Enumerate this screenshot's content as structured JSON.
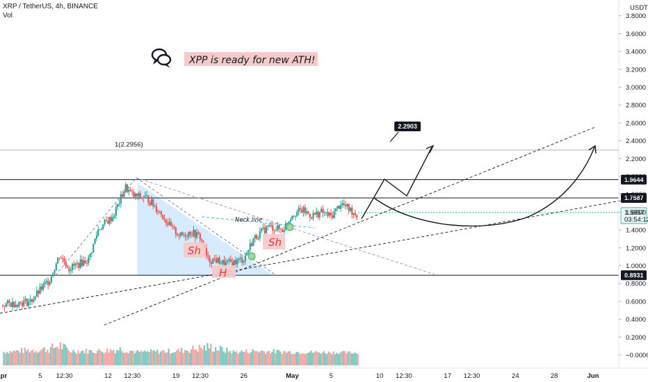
{
  "header": {
    "symbol_line": "XRP / TetherUS, 4h, BINANCE",
    "indicator_line": "Vol",
    "currency_label": "USDT"
  },
  "chart_data": {
    "type": "candlestick",
    "title": "XRP / TetherUS, 4h, BINANCE",
    "currency": "USDT",
    "y_ticks": [
      -0.0,
      0.2,
      0.4,
      0.6,
      0.8,
      1.0,
      1.2,
      1.4,
      1.6,
      1.8,
      2.0,
      2.2,
      2.4,
      2.6,
      2.8,
      3.0,
      3.2,
      3.4,
      3.6,
      3.8
    ],
    "y_tick_labels": [
      "−0.0000",
      "0.2000",
      "0.4000",
      "0.6000",
      "0.8000",
      "1.0000",
      "1.2000",
      "1.4000",
      "1.6000",
      "1.8000",
      "2.0000",
      "2.2000",
      "2.4000",
      "2.6000",
      "2.8000",
      "3.0000",
      "3.2000",
      "3.4000",
      "3.6000",
      "3.8000"
    ],
    "ylim": [
      -0.1,
      3.95
    ],
    "x_ticks": [
      {
        "label": "Apr",
        "day": 0
      },
      {
        "label": "5",
        "day": 4
      },
      {
        "label": "12:30",
        "day": 6.5
      },
      {
        "label": "12",
        "day": 11
      },
      {
        "label": "12:30",
        "day": 13.5
      },
      {
        "label": "19",
        "day": 18
      },
      {
        "label": "12:30",
        "day": 20.5
      },
      {
        "label": "26",
        "day": 25
      },
      {
        "label": "May",
        "day": 30
      },
      {
        "label": "5",
        "day": 34
      },
      {
        "label": "10",
        "day": 39
      },
      {
        "label": "12:30",
        "day": 41.5
      },
      {
        "label": "17",
        "day": 46
      },
      {
        "label": "12:30",
        "day": 48.5
      },
      {
        "label": "24",
        "day": 53
      },
      {
        "label": "28",
        "day": 57
      },
      {
        "label": "Jun",
        "day": 61
      }
    ],
    "price_key_points": [
      {
        "day": 0,
        "price": 0.56
      },
      {
        "day": 3,
        "price": 0.6
      },
      {
        "day": 5,
        "price": 0.85
      },
      {
        "day": 6,
        "price": 1.12
      },
      {
        "day": 7,
        "price": 0.97
      },
      {
        "day": 9,
        "price": 1.07
      },
      {
        "day": 10,
        "price": 1.41
      },
      {
        "day": 11.5,
        "price": 1.55
      },
      {
        "day": 12.8,
        "price": 1.88
      },
      {
        "day": 13.6,
        "price": 1.78
      },
      {
        "day": 15,
        "price": 1.76
      },
      {
        "day": 16.5,
        "price": 1.58
      },
      {
        "day": 17.5,
        "price": 1.42
      },
      {
        "day": 18.5,
        "price": 1.33
      },
      {
        "day": 19.5,
        "price": 1.38
      },
      {
        "day": 20.5,
        "price": 1.32
      },
      {
        "day": 21.3,
        "price": 1.06
      },
      {
        "day": 22,
        "price": 1.07
      },
      {
        "day": 23,
        "price": 1.02
      },
      {
        "day": 24,
        "price": 1.04
      },
      {
        "day": 25,
        "price": 1.08
      },
      {
        "day": 26,
        "price": 1.3
      },
      {
        "day": 27.5,
        "price": 1.44
      },
      {
        "day": 29,
        "price": 1.4
      },
      {
        "day": 30,
        "price": 1.58
      },
      {
        "day": 31,
        "price": 1.62
      },
      {
        "day": 32,
        "price": 1.56
      },
      {
        "day": 33,
        "price": 1.6
      },
      {
        "day": 34,
        "price": 1.55
      },
      {
        "day": 35,
        "price": 1.7
      },
      {
        "day": 36,
        "price": 1.62
      },
      {
        "day": 36.8,
        "price": 1.56
      }
    ],
    "volume_key_points": [
      {
        "day": 0,
        "v": 0.03
      },
      {
        "day": 5,
        "v": 0.06
      },
      {
        "day": 6,
        "v": 0.1
      },
      {
        "day": 7,
        "v": 0.04
      },
      {
        "day": 10,
        "v": 0.04
      },
      {
        "day": 12.5,
        "v": 0.06
      },
      {
        "day": 14,
        "v": 0.03
      },
      {
        "day": 18,
        "v": 0.04
      },
      {
        "day": 21.5,
        "v": 0.08
      },
      {
        "day": 24,
        "v": 0.03
      },
      {
        "day": 26,
        "v": 0.04
      },
      {
        "day": 30,
        "v": 0.03
      },
      {
        "day": 35,
        "v": 0.025
      },
      {
        "day": 36.8,
        "v": 0.02
      }
    ],
    "horizontal_levels": [
      {
        "price": 2.2956,
        "label": "1(2.2956)",
        "color": "#9598a1"
      },
      {
        "price": 1.9644,
        "label": "1.9644",
        "color": "#131722"
      },
      {
        "price": 1.7587,
        "label": "1.7587",
        "color": "#131722"
      },
      {
        "price": 0.8931,
        "label": "0.8931",
        "color": "#131722"
      }
    ],
    "current_price": {
      "value": "1.5957",
      "countdown": "03:54:12",
      "color": "#26a69a"
    },
    "target_callout": {
      "label": "2.2903",
      "day": 40.8,
      "price": 2.56
    },
    "annotations": {
      "headline": "XPP is ready for new ATH!",
      "neck_line": "Neck line",
      "left_shoulder": "Sh",
      "right_shoulder": "Sh",
      "head": "H"
    },
    "colors": {
      "up": "#26a69a",
      "down": "#ef5350",
      "vol_up": "#80cbc4",
      "vol_down": "#f7a9a7",
      "pattern_fill": "#bbdefb",
      "highlight": "#f8c9c9",
      "level_line": "#131722"
    }
  }
}
